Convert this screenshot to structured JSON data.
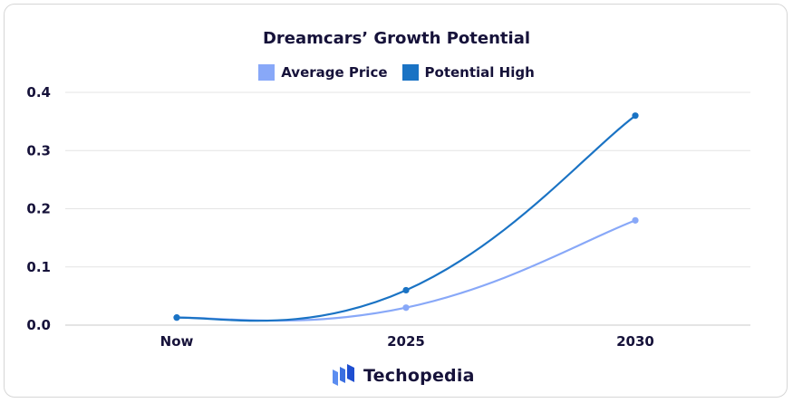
{
  "chart_data": {
    "type": "line",
    "title": "Dreamcars’ Growth Potential",
    "categories": [
      "Now",
      "2025",
      "2030"
    ],
    "ylim": [
      0,
      0.4
    ],
    "yticks": [
      "0.0",
      "0.1",
      "0.2",
      "0.3",
      "0.4"
    ],
    "grid": true,
    "legend_position": "top-center",
    "series": [
      {
        "name": "Average Price",
        "color": "#88a8f8",
        "values": [
          0.013,
          0.03,
          0.18
        ]
      },
      {
        "name": "Potential High",
        "color": "#1a73c4",
        "values": [
          0.013,
          0.06,
          0.36
        ]
      }
    ],
    "xlabel": "",
    "ylabel": ""
  },
  "branding": {
    "logo_text": "Techopedia",
    "logo_icon": "techopedia-cubes-icon"
  }
}
